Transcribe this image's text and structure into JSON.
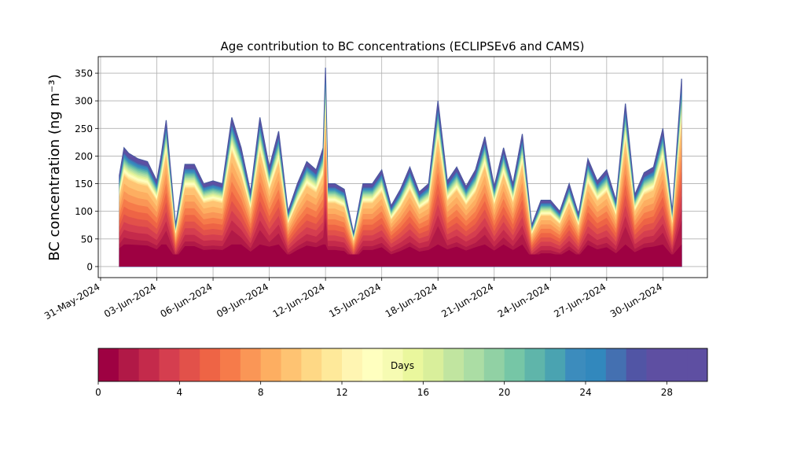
{
  "chart_data": {
    "type": "area",
    "title": "Age contribution to BC concentrations (ECLIPSEv6 and CAMS)",
    "ylabel": "BC concentration (ng m⁻³)",
    "xlabel": "",
    "ylim": [
      -20,
      380
    ],
    "xlim": [
      "2024-05-30T21:00",
      "2024-07-02T09:00"
    ],
    "grid": true,
    "yticks": [
      0,
      50,
      100,
      150,
      200,
      250,
      300,
      350
    ],
    "ytick_labels": [
      "0",
      "50",
      "100",
      "150",
      "200",
      "250",
      "300",
      "350"
    ],
    "xticks": [
      "2024-05-31",
      "2024-06-03",
      "2024-06-06",
      "2024-06-09",
      "2024-06-12",
      "2024-06-15",
      "2024-06-18",
      "2024-06-21",
      "2024-06-24",
      "2024-06-27",
      "2024-06-30"
    ],
    "xtick_labels": [
      "31-May-2024",
      "03-Jun-2024",
      "06-Jun-2024",
      "09-Jun-2024",
      "12-Jun-2024",
      "15-Jun-2024",
      "18-Jun-2024",
      "21-Jun-2024",
      "24-Jun-2024",
      "27-Jun-2024",
      "30-Jun-2024"
    ],
    "x_start": "2024-06-01",
    "x_end": "2024-07-01T00:00",
    "total": {
      "x": [
        "2024-06-01T00:00",
        "2024-06-01T06:00",
        "2024-06-01T12:00",
        "2024-06-02T00:00",
        "2024-06-02T12:00",
        "2024-06-03T00:00",
        "2024-06-03T06:00",
        "2024-06-03T12:00",
        "2024-06-04T00:00",
        "2024-06-04T12:00",
        "2024-06-05T00:00",
        "2024-06-05T12:00",
        "2024-06-06T00:00",
        "2024-06-06T12:00",
        "2024-06-07T00:00",
        "2024-06-07T12:00",
        "2024-06-08T00:00",
        "2024-06-08T12:00",
        "2024-06-09T00:00",
        "2024-06-09T12:00",
        "2024-06-10T00:00",
        "2024-06-10T12:00",
        "2024-06-11T00:00",
        "2024-06-11T12:00",
        "2024-06-11T21:00",
        "2024-06-12T00:00",
        "2024-06-12T03:00",
        "2024-06-12T12:00",
        "2024-06-13T00:00",
        "2024-06-13T12:00",
        "2024-06-14T00:00",
        "2024-06-14T12:00",
        "2024-06-15T00:00",
        "2024-06-15T12:00",
        "2024-06-16T00:00",
        "2024-06-16T12:00",
        "2024-06-17T00:00",
        "2024-06-17T12:00",
        "2024-06-18T00:00",
        "2024-06-18T12:00",
        "2024-06-19T00:00",
        "2024-06-19T12:00",
        "2024-06-20T00:00",
        "2024-06-20T12:00",
        "2024-06-21T00:00",
        "2024-06-21T12:00",
        "2024-06-22T00:00",
        "2024-06-22T12:00",
        "2024-06-23T00:00",
        "2024-06-23T12:00",
        "2024-06-24T00:00",
        "2024-06-24T12:00",
        "2024-06-25T00:00",
        "2024-06-25T12:00",
        "2024-06-26T00:00",
        "2024-06-26T12:00",
        "2024-06-27T00:00",
        "2024-06-27T12:00",
        "2024-06-28T00:00",
        "2024-06-28T12:00",
        "2024-06-29T00:00",
        "2024-06-29T12:00",
        "2024-06-30T00:00",
        "2024-06-30T12:00",
        "2024-07-01T00:00"
      ],
      "y": [
        165,
        215,
        205,
        195,
        190,
        155,
        205,
        265,
        75,
        185,
        185,
        150,
        155,
        150,
        270,
        215,
        135,
        270,
        180,
        245,
        100,
        150,
        190,
        175,
        215,
        360,
        150,
        150,
        140,
        60,
        150,
        150,
        175,
        110,
        140,
        180,
        135,
        150,
        300,
        155,
        180,
        145,
        175,
        235,
        145,
        215,
        150,
        240,
        75,
        120,
        120,
        100,
        150,
        95,
        195,
        155,
        175,
        120,
        295,
        130,
        170,
        180,
        250,
        100,
        340
      ]
    },
    "colorbar": {
      "label": "Days",
      "range": [
        0,
        30
      ],
      "ticks": [
        0,
        4,
        8,
        12,
        16,
        20,
        24,
        28
      ],
      "tick_labels": [
        "0",
        "4",
        "8",
        "12",
        "16",
        "20",
        "24",
        "28"
      ],
      "colormap": "Spectral",
      "colors": [
        "#9e0142",
        "#b11947",
        "#c42a4b",
        "#d53e4f",
        "#e2514a",
        "#ee6445",
        "#f67b4a",
        "#fa9656",
        "#fdae61",
        "#fec372",
        "#fed885",
        "#fee99a",
        "#fff5b2",
        "#ffffbf",
        "#f6fbb2",
        "#eaf79d",
        "#d9ef9b",
        "#c1e5a0",
        "#abdda4",
        "#91d1a4",
        "#76c6a6",
        "#5fb5aa",
        "#4aa3b1",
        "#3c8cbd",
        "#3288bd",
        "#4470b1",
        "#5155a5",
        "#5e4fa2",
        "#5e4fa2",
        "#5e4fa2"
      ]
    }
  }
}
